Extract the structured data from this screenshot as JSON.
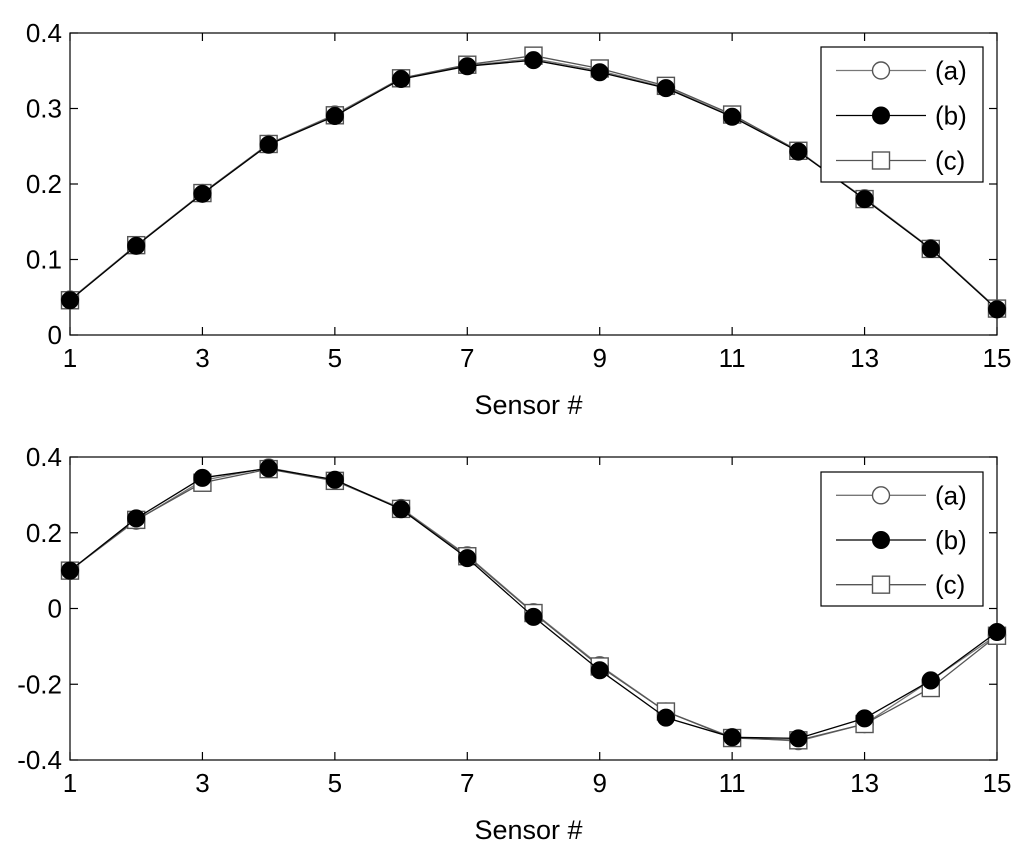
{
  "chart_data": [
    {
      "type": "line",
      "title": "",
      "xlabel": "Sensor #",
      "ylabel": "",
      "xlim": [
        1,
        15
      ],
      "ylim": [
        0,
        0.4
      ],
      "xticks": [
        "1",
        "3",
        "5",
        "7",
        "9",
        "11",
        "13",
        "15"
      ],
      "yticks": [
        "0",
        "0.1",
        "0.2",
        "0.3",
        "0.4"
      ],
      "grid": false,
      "legend_position": "top-right",
      "x": [
        1,
        2,
        3,
        4,
        5,
        6,
        7,
        8,
        9,
        10,
        11,
        12,
        13,
        14,
        15
      ],
      "series": [
        {
          "name": "(a)",
          "marker": "open-circle",
          "values": [
            0.047,
            0.119,
            0.188,
            0.253,
            0.292,
            0.34,
            0.357,
            0.366,
            0.35,
            0.328,
            0.29,
            0.243,
            0.181,
            0.115,
            0.035
          ]
        },
        {
          "name": "(b)",
          "marker": "filled-circle",
          "values": [
            0.046,
            0.118,
            0.187,
            0.252,
            0.29,
            0.339,
            0.356,
            0.364,
            0.348,
            0.327,
            0.289,
            0.243,
            0.18,
            0.114,
            0.034
          ]
        },
        {
          "name": "(c)",
          "marker": "open-square",
          "values": [
            0.046,
            0.119,
            0.188,
            0.253,
            0.291,
            0.34,
            0.358,
            0.37,
            0.353,
            0.33,
            0.292,
            0.244,
            0.18,
            0.114,
            0.035
          ]
        }
      ]
    },
    {
      "type": "line",
      "title": "",
      "xlabel": "Sensor #",
      "ylabel": "",
      "xlim": [
        1,
        15
      ],
      "ylim": [
        -0.4,
        0.4
      ],
      "xticks": [
        "1",
        "3",
        "5",
        "7",
        "9",
        "11",
        "13",
        "15"
      ],
      "yticks": [
        "-0.4",
        "-0.2",
        "0",
        "0.2",
        "0.4"
      ],
      "grid": false,
      "legend_position": "top-right",
      "x": [
        1,
        2,
        3,
        4,
        5,
        6,
        7,
        8,
        9,
        10,
        11,
        12,
        13,
        14,
        15
      ],
      "series": [
        {
          "name": "(a)",
          "marker": "open-circle",
          "values": [
            0.1,
            0.232,
            0.338,
            0.372,
            0.338,
            0.265,
            0.14,
            -0.01,
            -0.15,
            -0.272,
            -0.34,
            -0.35,
            -0.305,
            -0.19,
            -0.07
          ]
        },
        {
          "name": "(b)",
          "marker": "filled-circle",
          "values": [
            0.1,
            0.238,
            0.345,
            0.37,
            0.34,
            0.262,
            0.133,
            -0.022,
            -0.163,
            -0.288,
            -0.34,
            -0.343,
            -0.29,
            -0.19,
            -0.062
          ]
        },
        {
          "name": "(c)",
          "marker": "open-square",
          "values": [
            0.1,
            0.234,
            0.332,
            0.368,
            0.337,
            0.263,
            0.138,
            -0.012,
            -0.153,
            -0.272,
            -0.342,
            -0.348,
            -0.305,
            -0.21,
            -0.072
          ]
        }
      ]
    }
  ]
}
